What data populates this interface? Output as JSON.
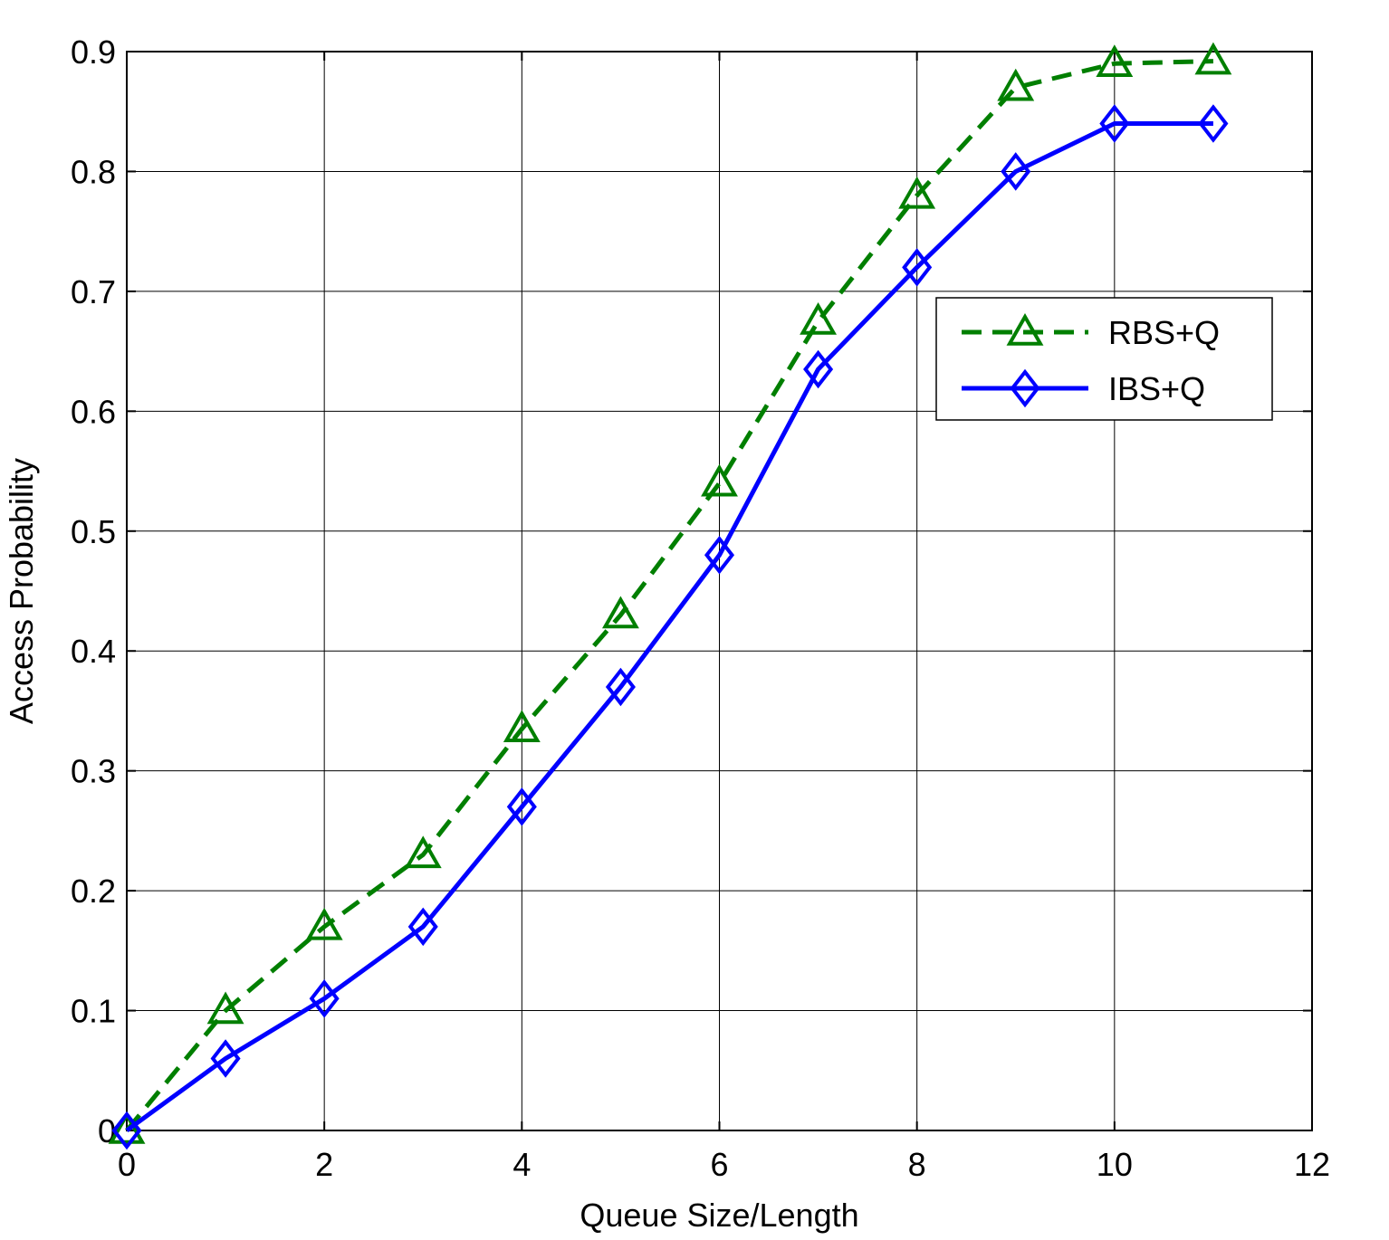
{
  "chart_data": {
    "type": "line",
    "title": "",
    "xlabel": "Queue Size/Length",
    "ylabel": "Access Probability",
    "xlim": [
      0,
      12
    ],
    "ylim": [
      0,
      0.9
    ],
    "xticks": [
      0,
      2,
      4,
      6,
      8,
      10,
      12
    ],
    "yticks": [
      0,
      0.1,
      0.2,
      0.3,
      0.4,
      0.5,
      0.6,
      0.7,
      0.8,
      0.9
    ],
    "xtick_labels": [
      "0",
      "2",
      "4",
      "6",
      "8",
      "10",
      "12"
    ],
    "ytick_labels": [
      "0",
      "0.1",
      "0.2",
      "0.3",
      "0.4",
      "0.5",
      "0.6",
      "0.7",
      "0.8",
      "0.9"
    ],
    "grid": true,
    "legend_position": "upper-right",
    "x": [
      0,
      1,
      2,
      3,
      4,
      5,
      6,
      7,
      8,
      9,
      10,
      11
    ],
    "series": [
      {
        "name": "RBS+Q",
        "color": "#007F00",
        "line_style": "dashed",
        "marker": "triangle-icon",
        "values": [
          0.0,
          0.1,
          0.17,
          0.23,
          0.335,
          0.43,
          0.54,
          0.675,
          0.78,
          0.87,
          0.89,
          0.892
        ]
      },
      {
        "name": "IBS+Q",
        "color": "#0000FF",
        "line_style": "solid",
        "marker": "diamond-icon",
        "values": [
          0.0,
          0.06,
          0.11,
          0.17,
          0.27,
          0.37,
          0.48,
          0.635,
          0.72,
          0.8,
          0.84,
          0.84
        ]
      }
    ]
  }
}
